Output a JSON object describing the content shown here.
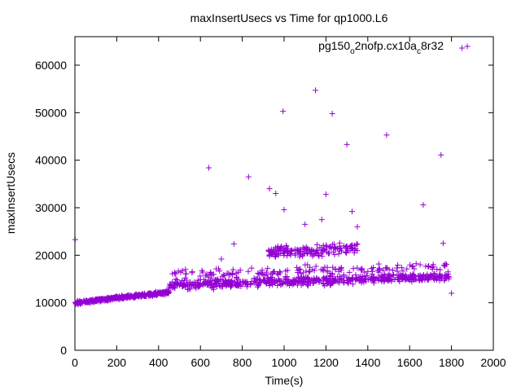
{
  "chart_data": {
    "type": "scatter",
    "title": "maxInsertUsecs vs Time for qp1000.L6",
    "xlabel": "Time(s)",
    "ylabel": "maxInsertUsecs",
    "xlim": [
      0,
      2000
    ],
    "ylim": [
      0,
      66000
    ],
    "x_ticks": [
      0,
      200,
      400,
      600,
      800,
      1000,
      1200,
      1400,
      1600,
      1800,
      2000
    ],
    "y_ticks": [
      0,
      10000,
      20000,
      30000,
      40000,
      50000,
      60000
    ],
    "grid": false,
    "legend_position": "top-right",
    "marker": "+",
    "series": [
      {
        "name": "pg150",
        "name_sub": "o",
        "name_mid": "2nofp.cx10a",
        "name_sub2": "c",
        "name_end": "8r32",
        "color": "#9400d3",
        "phases": [
          {
            "x_start": 0,
            "x_end": 450,
            "y_start": 10000,
            "y_end": 12200,
            "spread": 700,
            "count": 380
          },
          {
            "x_start": 450,
            "x_end": 1800,
            "y_start": 13800,
            "y_end": 15500,
            "spread": 1800,
            "count": 600
          },
          {
            "x_start": 920,
            "x_end": 1360,
            "y_start": 20500,
            "y_end": 21500,
            "spread": 2500,
            "count": 170
          },
          {
            "x_start": 450,
            "x_end": 1800,
            "y_start": 16000,
            "y_end": 17500,
            "spread": 2200,
            "count": 150
          }
        ],
        "outliers": [
          {
            "x": 2,
            "y": 23300
          },
          {
            "x": 640,
            "y": 38400
          },
          {
            "x": 830,
            "y": 36500
          },
          {
            "x": 930,
            "y": 34000
          },
          {
            "x": 960,
            "y": 33000
          },
          {
            "x": 995,
            "y": 50300
          },
          {
            "x": 1000,
            "y": 29600
          },
          {
            "x": 1150,
            "y": 54700
          },
          {
            "x": 1200,
            "y": 32800
          },
          {
            "x": 1230,
            "y": 49800
          },
          {
            "x": 1300,
            "y": 43300
          },
          {
            "x": 1325,
            "y": 29200
          },
          {
            "x": 1490,
            "y": 45300
          },
          {
            "x": 1665,
            "y": 30600
          },
          {
            "x": 1750,
            "y": 41100
          },
          {
            "x": 1760,
            "y": 22500
          },
          {
            "x": 1800,
            "y": 12000
          },
          {
            "x": 1850,
            "y": 63600
          },
          {
            "x": 760,
            "y": 22400
          },
          {
            "x": 700,
            "y": 19200
          },
          {
            "x": 1100,
            "y": 26500
          },
          {
            "x": 1180,
            "y": 27500
          },
          {
            "x": 1350,
            "y": 26000
          }
        ]
      }
    ]
  }
}
